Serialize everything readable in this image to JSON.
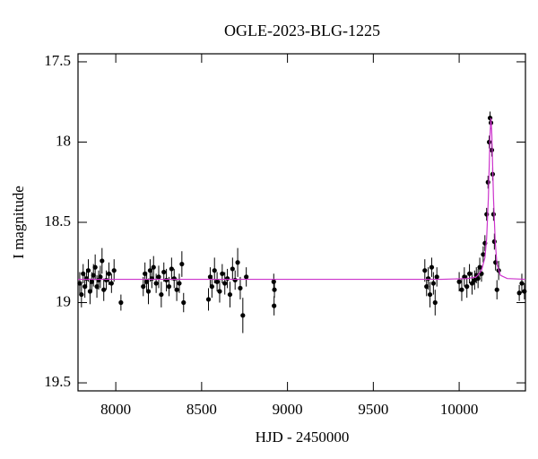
{
  "chart_data": {
    "type": "scatter",
    "title": "OGLE-2023-BLG-1225",
    "x_label": "HJD - 2450000",
    "y_label": "I magnitude",
    "xlim": [
      7780,
      10386
    ],
    "ylim": [
      17.45,
      19.55
    ],
    "y_inverted": true,
    "xticks": [
      8000,
      8500,
      9000,
      9500,
      10000
    ],
    "yticks": [
      17.5,
      18,
      18.5,
      19,
      19.5
    ],
    "series": [
      {
        "color": "#000000",
        "x": [
          7790,
          7800,
          7810,
          7820,
          7830,
          7840,
          7850,
          7860,
          7870,
          7880,
          7890,
          7900,
          7910,
          7920,
          7930,
          7945,
          7960,
          7975,
          7990,
          8030,
          8160,
          8170,
          8180,
          8190,
          8200,
          8210,
          8220,
          8235,
          8250,
          8265,
          8280,
          8295,
          8310,
          8325,
          8340,
          8355,
          8370,
          8385,
          8395,
          8540,
          8550,
          8560,
          8575,
          8590,
          8605,
          8620,
          8635,
          8650,
          8665,
          8680,
          8695,
          8710,
          8725,
          8740,
          8760,
          8920,
          8922,
          8924,
          9800,
          9810,
          9820,
          9830,
          9840,
          9850,
          9860,
          9870,
          10000,
          10015,
          10030,
          10045,
          10060,
          10075,
          10090,
          10100,
          10110,
          10120,
          10130,
          10140,
          10150,
          10160,
          10168,
          10175,
          10180,
          10185,
          10190,
          10195,
          10200,
          10205,
          10212,
          10220,
          10230,
          10350,
          10365,
          10380
        ],
        "values": [
          18.88,
          18.95,
          18.82,
          18.9,
          18.85,
          18.8,
          18.93,
          18.87,
          18.83,
          18.78,
          18.9,
          18.86,
          18.84,
          18.74,
          18.92,
          18.86,
          18.82,
          18.88,
          18.8,
          19.0,
          18.9,
          18.82,
          18.87,
          18.93,
          18.8,
          18.85,
          18.78,
          18.88,
          18.84,
          18.95,
          18.81,
          18.86,
          18.9,
          18.79,
          18.85,
          18.92,
          18.88,
          18.76,
          19.0,
          18.98,
          18.84,
          18.9,
          18.8,
          18.87,
          18.93,
          18.82,
          18.88,
          18.85,
          18.95,
          18.79,
          18.86,
          18.75,
          18.91,
          19.08,
          18.84,
          18.87,
          19.02,
          18.92,
          18.8,
          18.9,
          18.85,
          18.95,
          18.78,
          18.88,
          19.0,
          18.84,
          18.87,
          18.92,
          18.84,
          18.9,
          18.82,
          18.88,
          18.86,
          18.83,
          18.85,
          18.78,
          18.82,
          18.7,
          18.63,
          18.45,
          18.25,
          18.0,
          17.85,
          17.88,
          18.05,
          18.2,
          18.45,
          18.62,
          18.75,
          18.92,
          18.8,
          18.94,
          18.88,
          18.93
        ],
        "errors": [
          0.07,
          0.08,
          0.06,
          0.07,
          0.06,
          0.07,
          0.08,
          0.06,
          0.07,
          0.08,
          0.07,
          0.06,
          0.07,
          0.08,
          0.07,
          0.06,
          0.07,
          0.06,
          0.07,
          0.05,
          0.06,
          0.07,
          0.06,
          0.08,
          0.07,
          0.06,
          0.07,
          0.06,
          0.07,
          0.08,
          0.06,
          0.07,
          0.06,
          0.07,
          0.06,
          0.07,
          0.06,
          0.08,
          0.06,
          0.07,
          0.06,
          0.07,
          0.08,
          0.06,
          0.07,
          0.06,
          0.07,
          0.06,
          0.08,
          0.07,
          0.06,
          0.09,
          0.07,
          0.11,
          0.06,
          0.05,
          0.06,
          0.05,
          0.07,
          0.06,
          0.07,
          0.08,
          0.06,
          0.07,
          0.08,
          0.06,
          0.06,
          0.07,
          0.06,
          0.07,
          0.06,
          0.07,
          0.06,
          0.05,
          0.06,
          0.06,
          0.05,
          0.05,
          0.05,
          0.04,
          0.04,
          0.04,
          0.04,
          0.04,
          0.04,
          0.04,
          0.04,
          0.05,
          0.05,
          0.06,
          0.06,
          0.05,
          0.06,
          0.05
        ]
      },
      {
        "type": "line",
        "color": "#cc33cc",
        "x": [
          7780,
          9900,
          10050,
          10100,
          10130,
          10150,
          10160,
          10170,
          10175,
          10180,
          10185,
          10190,
          10195,
          10200,
          10210,
          10220,
          10240,
          10280,
          10386
        ],
        "values": [
          18.855,
          18.855,
          18.85,
          18.84,
          18.8,
          18.72,
          18.6,
          18.35,
          18.15,
          17.95,
          17.85,
          17.95,
          18.15,
          18.35,
          18.62,
          18.76,
          18.83,
          18.85,
          18.855
        ]
      }
    ]
  }
}
